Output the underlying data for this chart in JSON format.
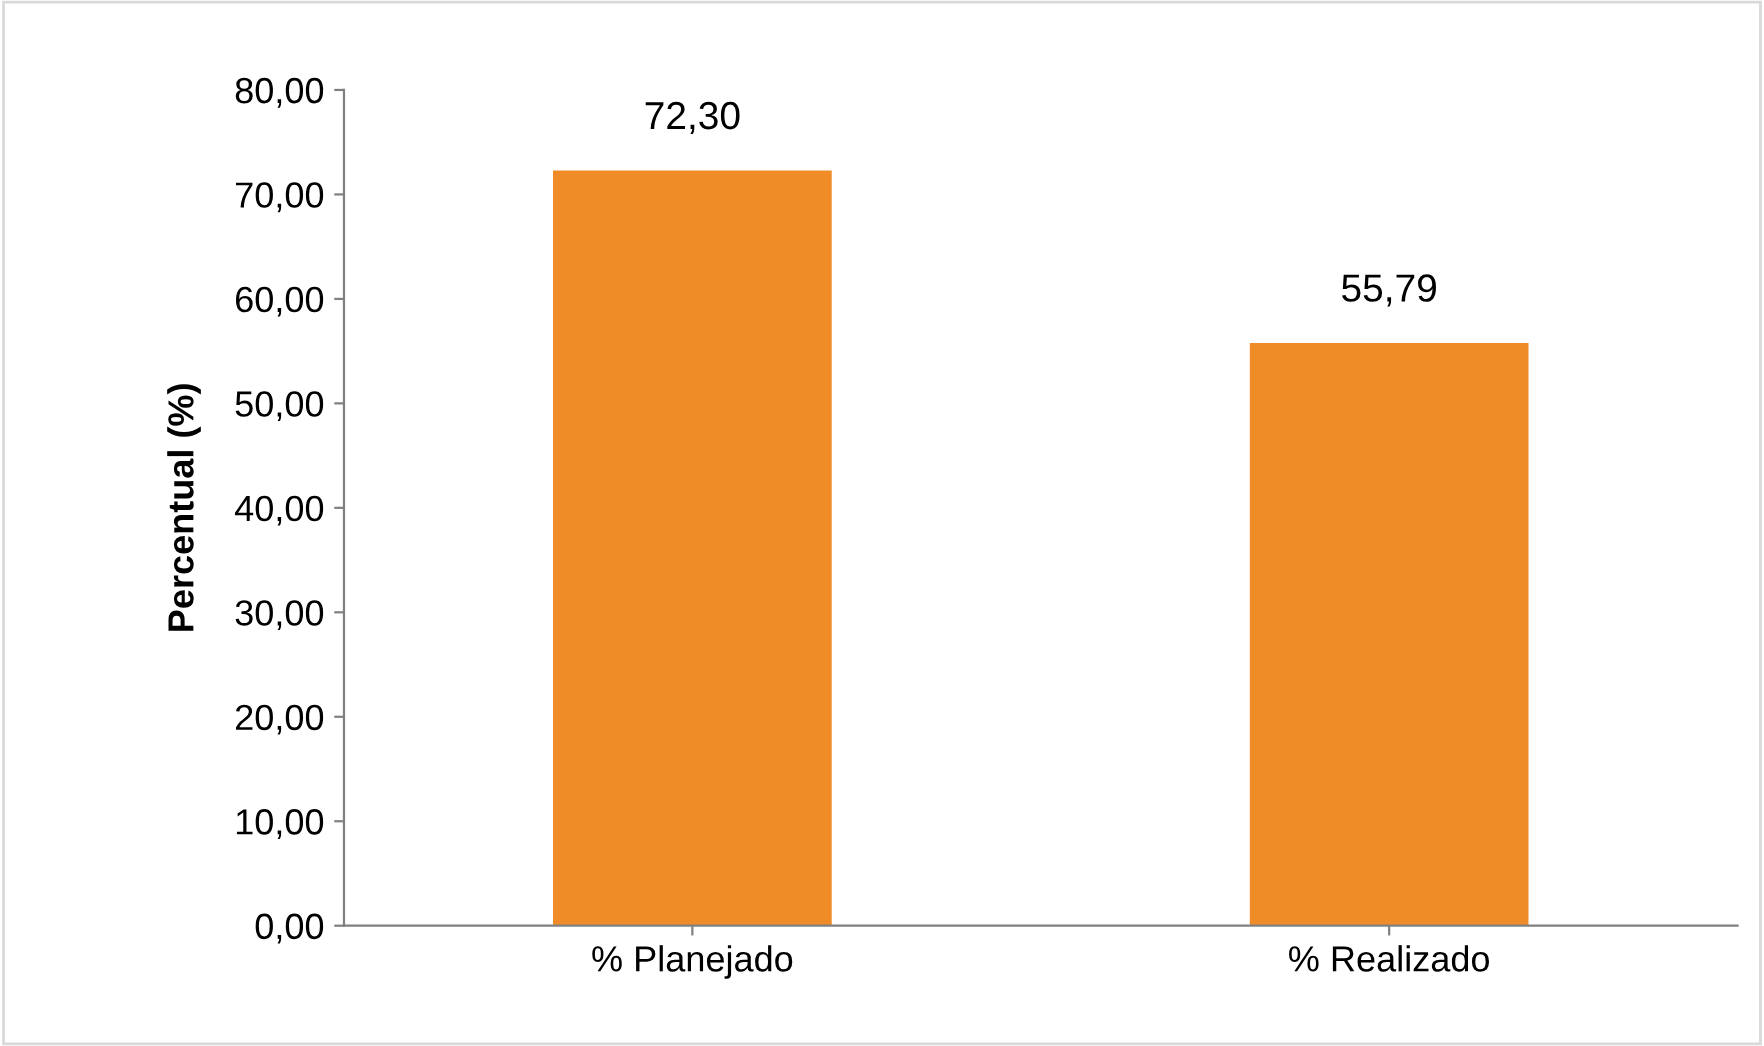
{
  "chart_data": {
    "type": "bar",
    "ylabel": "Percentual (%)",
    "categories": [
      "% Planejado",
      "% Realizado"
    ],
    "values": [
      72.3,
      55.79
    ],
    "color": "#f08c28",
    "value_labels": [
      "72,30",
      "55,79"
    ],
    "ylim": [
      0,
      80
    ],
    "yticks": [
      {
        "value": 0,
        "label": "0,00"
      },
      {
        "value": 10,
        "label": "10,00"
      },
      {
        "value": 20,
        "label": "20,00"
      },
      {
        "value": 30,
        "label": "30,00"
      },
      {
        "value": 40,
        "label": "40,00"
      },
      {
        "value": 50,
        "label": "50,00"
      },
      {
        "value": 60,
        "label": "60,00"
      },
      {
        "value": 70,
        "label": "70,00"
      },
      {
        "value": 80,
        "label": "80,00"
      }
    ],
    "grid": false,
    "legend": false
  }
}
